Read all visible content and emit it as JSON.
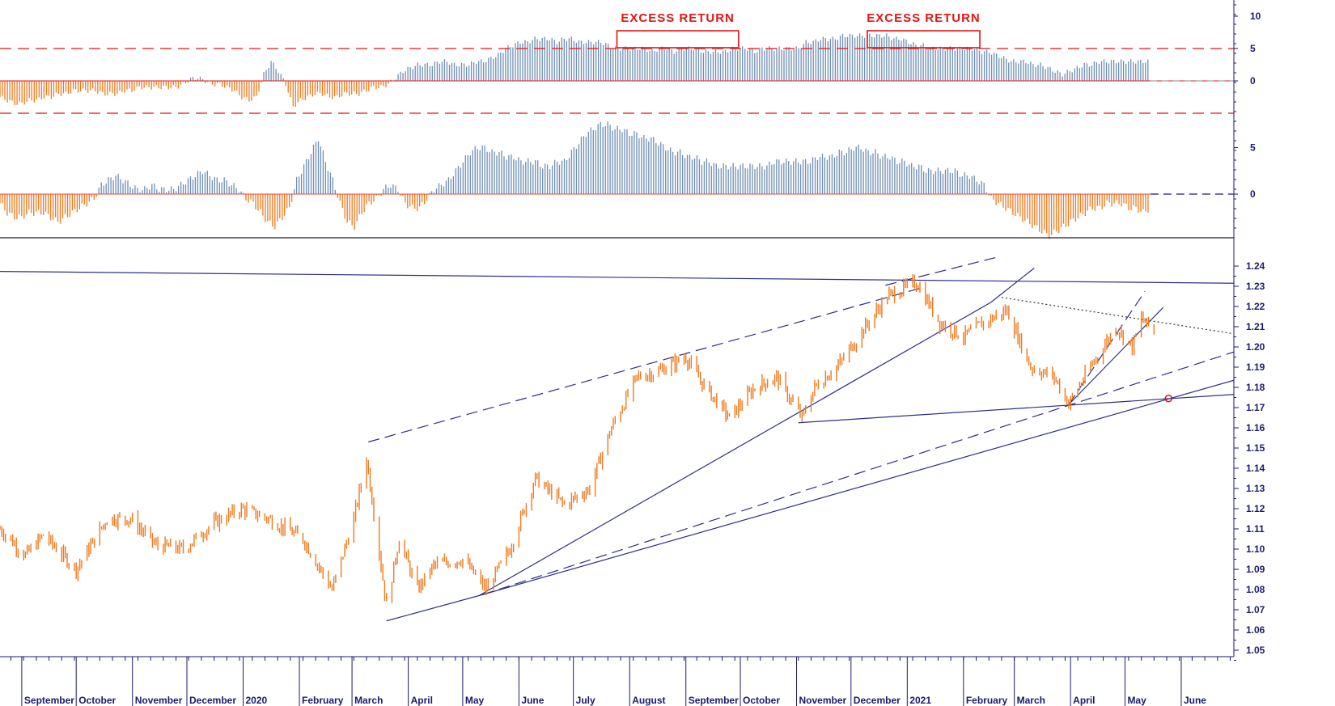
{
  "chart_data": [
    {
      "type": "bar",
      "panel": "excess-return oscillator",
      "ylim": [
        -12,
        12
      ],
      "y_ticks": [
        "10",
        "5",
        "0"
      ],
      "y_tick_values": [
        10,
        5,
        0
      ],
      "reference_lines": [
        5,
        -5
      ],
      "annotations": [
        "EXCESS RETURN",
        "EXCESS RETURN"
      ],
      "colors": {
        "positive": "#6f8fb4",
        "negative": "#f07a1e",
        "reference": "#e41414"
      },
      "values_note_free": true,
      "values": [
        -2.5,
        -3,
        -3.5,
        -3.5,
        -3,
        -3,
        -2.5,
        -2.5,
        -2,
        -2,
        -1.5,
        -1.5,
        -1.5,
        -1.5,
        -2,
        -2,
        -2,
        -1.5,
        -1.5,
        -1,
        -1,
        -1,
        -1,
        -1,
        -1,
        -0.5,
        0.3,
        0.5,
        0,
        -0.5,
        -0.5,
        -1,
        -1.5,
        -2.5,
        -3,
        -2.5,
        1,
        3,
        1.5,
        -0.5,
        -4,
        -3,
        -2.5,
        -2,
        -2,
        -2.5,
        -2.5,
        -2,
        -2,
        -2,
        -1.5,
        -1,
        -1,
        -0.5,
        0.5,
        1.5,
        2,
        2.5,
        2.5,
        2.5,
        3,
        3,
        2.5,
        2.5,
        2.5,
        3,
        3,
        3.5,
        4,
        5,
        5.5,
        6,
        6,
        6.5,
        6.5,
        6.5,
        6,
        6.5,
        6.5,
        6,
        6,
        6,
        6,
        5.5,
        5,
        5,
        5,
        5,
        5,
        4.5,
        5,
        5,
        4.5,
        5,
        5,
        5,
        4.5,
        4.5,
        4.5,
        4.5,
        5,
        5,
        5,
        4.5,
        5,
        5,
        5,
        5,
        5,
        5,
        6,
        6,
        6.5,
        6.5,
        6.5,
        7,
        7,
        7,
        7,
        7,
        7,
        7,
        6.5,
        6.5,
        6,
        5.5,
        5.5,
        5,
        5,
        5,
        5,
        5,
        5,
        5,
        4.5,
        4.5,
        4,
        3.5,
        3,
        3,
        3,
        2.5,
        2.5,
        2,
        1.5,
        1,
        1.5,
        2,
        2.5,
        2.5,
        3,
        3,
        3,
        3,
        3,
        3,
        3,
        3
      ],
      "x_range": [
        "2019-08-20",
        "2021-05-15"
      ]
    },
    {
      "type": "bar",
      "panel": "momentum oscillator",
      "ylim": [
        -6,
        12
      ],
      "y_ticks": [
        "5",
        "0"
      ],
      "y_tick_values": [
        5,
        0
      ],
      "colors": {
        "positive": "#6f8fb4",
        "negative": "#f07a1e"
      },
      "values": [
        -1,
        -2,
        -2.5,
        -2.5,
        -2,
        -2,
        -2,
        -2.5,
        -3,
        -2.5,
        -2,
        -1.5,
        -1,
        -0.5,
        1,
        1.5,
        2,
        1.5,
        1,
        0.5,
        0.5,
        1,
        0.5,
        0.5,
        0.5,
        1,
        1.5,
        2,
        2.5,
        2,
        1.5,
        1.5,
        1,
        0.5,
        -0.5,
        -1,
        -2,
        -3,
        -3.5,
        -2.5,
        -1.5,
        1.5,
        3,
        4.5,
        6,
        3.5,
        1.5,
        -1,
        -3,
        -3.5,
        -2,
        -1,
        -0.5,
        0.5,
        1,
        0.5,
        -1,
        -1.5,
        -1.5,
        -0.5,
        0.5,
        1,
        1.5,
        2.5,
        3.5,
        4.5,
        5,
        5,
        4.5,
        4.5,
        4,
        4,
        3.5,
        3.5,
        3.5,
        3,
        3,
        3.5,
        3.5,
        4.5,
        5.5,
        6.5,
        7,
        7.5,
        7.5,
        7,
        7,
        6.5,
        6.5,
        6,
        6,
        5.5,
        5,
        4.5,
        4.5,
        4,
        4,
        3.5,
        3.5,
        3,
        3,
        3,
        3,
        3,
        3,
        3,
        3,
        3.5,
        3.5,
        3.5,
        3.5,
        3.5,
        3.5,
        4,
        4,
        4,
        4.5,
        4.5,
        5,
        5,
        4.5,
        4.5,
        4,
        4,
        3.5,
        3.5,
        3,
        3,
        2.5,
        2.5,
        2.5,
        2.5,
        2.5,
        2,
        2,
        1.5,
        1,
        -0.5,
        -1,
        -1.5,
        -2,
        -2.5,
        -3,
        -3.5,
        -4,
        -4.5,
        -4,
        -3.5,
        -3,
        -2.5,
        -2,
        -1.5,
        -1.5,
        -1,
        -1,
        -1,
        -1.5,
        -1.5,
        -2,
        -1.5
      ]
    },
    {
      "type": "line",
      "panel": "price",
      "ylim": [
        1.05,
        1.245
      ],
      "y_ticks": [
        "1.24",
        "1.23",
        "1.22",
        "1.21",
        "1.20",
        "1.19",
        "1.18",
        "1.17",
        "1.16",
        "1.15",
        "1.14",
        "1.13",
        "1.12",
        "1.11",
        "1.10",
        "1.09",
        "1.08",
        "1.07",
        "1.06",
        "1.05"
      ],
      "y_tick_values": [
        1.24,
        1.23,
        1.22,
        1.21,
        1.2,
        1.19,
        1.18,
        1.17,
        1.16,
        1.15,
        1.14,
        1.13,
        1.12,
        1.11,
        1.1,
        1.09,
        1.08,
        1.07,
        1.06,
        1.05
      ],
      "x_labels": [
        "September",
        "October",
        "November",
        "December",
        "2020",
        "February",
        "March",
        "April",
        "May",
        "June",
        "July",
        "August",
        "September",
        "October",
        "November",
        "December",
        "2021",
        "February",
        "March",
        "April",
        "May",
        "June"
      ],
      "x_dates": [
        "2019-09-01",
        "2019-10-01",
        "2019-11-01",
        "2019-12-01",
        "2020-01-01",
        "2020-02-01",
        "2020-03-01",
        "2020-04-01",
        "2020-05-01",
        "2020-06-01",
        "2020-07-01",
        "2020-08-01",
        "2020-09-01",
        "2020-10-01",
        "2020-11-01",
        "2020-12-01",
        "2021-01-01",
        "2021-02-01",
        "2021-03-01",
        "2021-04-01",
        "2021-05-01",
        "2021-06-01"
      ],
      "x_range": [
        "2019-08-20",
        "2021-06-30"
      ],
      "series_color": "#f07a1e",
      "points": [
        [
          "2019-08-20",
          1.11
        ],
        [
          "2019-09-03",
          1.097
        ],
        [
          "2019-09-13",
          1.107
        ],
        [
          "2019-10-01",
          1.09
        ],
        [
          "2019-10-18",
          1.115
        ],
        [
          "2019-10-31",
          1.115
        ],
        [
          "2019-11-14",
          1.102
        ],
        [
          "2019-11-29",
          1.1
        ],
        [
          "2019-12-16",
          1.113
        ],
        [
          "2019-12-31",
          1.12
        ],
        [
          "2020-01-15",
          1.115
        ],
        [
          "2020-02-03",
          1.105
        ],
        [
          "2020-02-19",
          1.08
        ],
        [
          "2020-03-02",
          1.115
        ],
        [
          "2020-03-09",
          1.145
        ],
        [
          "2020-03-20",
          1.072
        ],
        [
          "2020-03-27",
          1.105
        ],
        [
          "2020-04-06",
          1.08
        ],
        [
          "2020-04-15",
          1.092
        ],
        [
          "2020-05-01",
          1.095
        ],
        [
          "2020-05-14",
          1.08
        ],
        [
          "2020-05-27",
          1.1
        ],
        [
          "2020-06-10",
          1.135
        ],
        [
          "2020-06-26",
          1.122
        ],
        [
          "2020-07-10",
          1.13
        ],
        [
          "2020-07-22",
          1.16
        ],
        [
          "2020-08-05",
          1.185
        ],
        [
          "2020-08-17",
          1.188
        ],
        [
          "2020-09-01",
          1.195
        ],
        [
          "2020-09-10",
          1.182
        ],
        [
          "2020-09-25",
          1.165
        ],
        [
          "2020-10-09",
          1.18
        ],
        [
          "2020-10-21",
          1.185
        ],
        [
          "2020-11-04",
          1.165
        ],
        [
          "2020-11-11",
          1.18
        ],
        [
          "2020-11-25",
          1.192
        ],
        [
          "2020-12-09",
          1.21
        ],
        [
          "2020-12-21",
          1.225
        ],
        [
          "2021-01-06",
          1.232
        ],
        [
          "2021-01-19",
          1.212
        ],
        [
          "2021-02-01",
          1.205
        ],
        [
          "2021-02-12",
          1.212
        ],
        [
          "2021-02-25",
          1.218
        ],
        [
          "2021-03-10",
          1.19
        ],
        [
          "2021-03-23",
          1.185
        ],
        [
          "2021-03-31",
          1.172
        ],
        [
          "2021-04-12",
          1.19
        ],
        [
          "2021-04-26",
          1.21
        ],
        [
          "2021-05-05",
          1.2
        ],
        [
          "2021-05-10",
          1.214
        ],
        [
          "2021-05-17",
          1.208
        ]
      ],
      "trendlines": [
        {
          "style": "solid",
          "from": [
            "2019-08-01",
            1.2375
          ],
          "to": [
            "2021-06-30",
            1.2315
          ]
        },
        {
          "style": "dashed",
          "from": [
            "2020-03-10",
            1.153
          ],
          "to": [
            "2021-01-10",
            1.2295
          ]
        },
        {
          "style": "dashed",
          "from": [
            "2020-12-20",
            1.2305
          ],
          "to": [
            "2021-02-20",
            1.2445
          ]
        },
        {
          "style": "solid",
          "from": [
            "2020-05-10",
            1.077
          ],
          "to": [
            "2021-02-16",
            1.222
          ]
        },
        {
          "style": "solid",
          "from": [
            "2021-02-16",
            1.222
          ],
          "to": [
            "2021-03-12",
            1.239
          ]
        },
        {
          "style": "solid",
          "from": [
            "2020-03-20",
            1.0645
          ],
          "to": [
            "2020-05-12",
            1.0775
          ]
        },
        {
          "style": "solid",
          "from": [
            "2020-05-12",
            1.0775
          ],
          "to": [
            "2021-06-30",
            1.1835
          ]
        },
        {
          "style": "dashed",
          "from": [
            "2020-05-12",
            1.0775
          ],
          "to": [
            "2021-06-30",
            1.1975
          ]
        },
        {
          "style": "solid",
          "from": [
            "2020-11-02",
            1.1625
          ],
          "to": [
            "2021-06-30",
            1.1765
          ]
        },
        {
          "style": "solid",
          "from": [
            "2021-03-31",
            1.1715
          ],
          "to": [
            "2021-05-22",
            1.2195
          ]
        },
        {
          "style": "dashed",
          "from": [
            "2021-03-31",
            1.1715
          ],
          "to": [
            "2021-05-12",
            1.2275
          ]
        },
        {
          "style": "dotted",
          "from": [
            "2021-02-22",
            1.2245
          ],
          "to": [
            "2021-06-30",
            1.2065
          ]
        }
      ],
      "marker": {
        "date": "2021-05-25",
        "value": 1.1745,
        "color": "#e41414"
      }
    }
  ]
}
